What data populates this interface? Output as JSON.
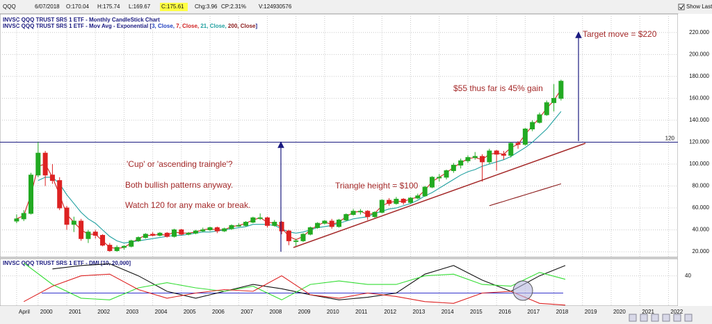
{
  "toolbar": {
    "items": [
      "QQQ",
      "6/07/2018",
      "O:170.04",
      "H:175.74",
      "L:169.67",
      "C:175.61",
      "Chg:3.96",
      "CP:2.31%",
      "V:124930576"
    ],
    "show_last": "Show Last"
  },
  "chart_data": {
    "type": "candlestick",
    "title": "INVSC QQQ TRUST SRS 1 ETF - Monthly CandleStick Chart",
    "ma_legend": [
      {
        "text": "INVSC QQQ TRUST SRS 1 ETF - Mov Avg - Exponential [",
        "color": "#1a1a80"
      },
      {
        "text": "3, Close, ",
        "color": "#2040c0"
      },
      {
        "text": "7, Close, ",
        "color": "#d02020"
      },
      {
        "text": "21, Close, ",
        "color": "#20a0a0"
      },
      {
        "text": "200, Close",
        "color": "#8b1a1a"
      },
      {
        "text": "]",
        "color": "#1a1a80"
      }
    ],
    "up_color": "#22aa22",
    "down_color": "#dd2222",
    "x": [
      1999.25,
      1999.5,
      1999.75,
      2000,
      2000.25,
      2000.5,
      2000.75,
      2001,
      2001.25,
      2001.5,
      2001.75,
      2002,
      2002.25,
      2002.5,
      2002.75,
      2003,
      2003.25,
      2003.5,
      2003.75,
      2004,
      2004.25,
      2004.5,
      2004.75,
      2005,
      2005.25,
      2005.5,
      2005.75,
      2006,
      2006.25,
      2006.5,
      2006.75,
      2007,
      2007.25,
      2007.5,
      2007.75,
      2008,
      2008.25,
      2008.5,
      2008.75,
      2009,
      2009.25,
      2009.5,
      2009.75,
      2010,
      2010.25,
      2010.5,
      2010.75,
      2011,
      2011.25,
      2011.5,
      2011.75,
      2012,
      2012.25,
      2012.5,
      2012.75,
      2013,
      2013.25,
      2013.5,
      2013.75,
      2014,
      2014.25,
      2014.5,
      2014.75,
      2015,
      2015.25,
      2015.5,
      2015.75,
      2016,
      2016.25,
      2016.5,
      2016.75,
      2017,
      2017.25,
      2017.5,
      2017.75,
      2018,
      2018.25
    ],
    "open": [
      48,
      50,
      55,
      90,
      110,
      90,
      85,
      60,
      45,
      48,
      32,
      38,
      35,
      26,
      21,
      24,
      25,
      30,
      33,
      36,
      35,
      37,
      34,
      40,
      36,
      37,
      39,
      40,
      42,
      39,
      41,
      44,
      44,
      47,
      51,
      51,
      44,
      47,
      39,
      30,
      30,
      36,
      42,
      46,
      48,
      43,
      49,
      54,
      57,
      57,
      52,
      56,
      67,
      64,
      68,
      65,
      69,
      71,
      79,
      88,
      88,
      94,
      99,
      103,
      106,
      107,
      102,
      112,
      109,
      108,
      119,
      118,
      132,
      138,
      145,
      156,
      160
    ],
    "high": [
      54,
      58,
      92,
      120,
      112,
      100,
      88,
      62,
      52,
      50,
      40,
      40,
      36,
      28,
      26,
      26,
      31,
      34,
      37,
      38,
      38,
      38,
      41,
      41,
      38,
      40,
      42,
      43,
      43,
      42,
      45,
      46,
      48,
      52,
      55,
      52,
      49,
      48,
      40,
      32,
      37,
      43,
      47,
      49,
      50,
      50,
      55,
      59,
      59,
      58,
      57,
      68,
      69,
      70,
      69,
      70,
      73,
      80,
      89,
      91,
      95,
      101,
      105,
      108,
      111,
      109,
      114,
      113,
      112,
      120,
      121,
      133,
      140,
      147,
      158,
      173,
      177
    ],
    "low": [
      46,
      48,
      54,
      88,
      80,
      82,
      58,
      40,
      38,
      30,
      28,
      32,
      25,
      20,
      20,
      22,
      24,
      29,
      32,
      34,
      34,
      33,
      33,
      35,
      35,
      36,
      38,
      39,
      37,
      38,
      40,
      43,
      43,
      46,
      49,
      42,
      43,
      36,
      26,
      25,
      29,
      35,
      41,
      45,
      41,
      42,
      48,
      53,
      54,
      49,
      51,
      55,
      62,
      63,
      63,
      64,
      68,
      70,
      78,
      84,
      86,
      92,
      96,
      101,
      104,
      84,
      100,
      94,
      104,
      106,
      114,
      117,
      130,
      137,
      144,
      148,
      158
    ],
    "close": [
      50,
      55,
      90,
      110,
      90,
      85,
      60,
      45,
      48,
      32,
      38,
      35,
      26,
      21,
      24,
      25,
      30,
      33,
      36,
      35,
      37,
      34,
      40,
      36,
      37,
      39,
      40,
      42,
      39,
      41,
      44,
      44,
      47,
      51,
      51,
      44,
      47,
      39,
      30,
      30,
      36,
      42,
      46,
      48,
      43,
      49,
      54,
      57,
      57,
      52,
      56,
      67,
      64,
      68,
      65,
      69,
      71,
      79,
      88,
      88,
      94,
      99,
      103,
      106,
      107,
      102,
      112,
      109,
      108,
      119,
      118,
      132,
      138,
      145,
      156,
      160,
      175.61
    ],
    "series": [
      {
        "color": "#d02020",
        "values": [
          50,
          53,
          72,
          98,
          100,
          88,
          72,
          54,
          47,
          40,
          36,
          36,
          30,
          24,
          23,
          24,
          28,
          32,
          35,
          35,
          36,
          35,
          38,
          37,
          37,
          38,
          40,
          41,
          40,
          40,
          43,
          44,
          46,
          49,
          51,
          47,
          46,
          42,
          34,
          31,
          34,
          40,
          44,
          47,
          45,
          47,
          52,
          56,
          57,
          54,
          55,
          62,
          65,
          66,
          66,
          68,
          70,
          76,
          84,
          88,
          92,
          97,
          101,
          105,
          106,
          104,
          109,
          110,
          109,
          115,
          118,
          127,
          135,
          142,
          151,
          158,
          168
        ]
      },
      {
        "color": "#20a0a0",
        "values": [
          null,
          null,
          null,
          85,
          88,
          88,
          82,
          72,
          64,
          56,
          50,
          46,
          40,
          34,
          30,
          28,
          29,
          30,
          31,
          32,
          33,
          34,
          35,
          35,
          36,
          37,
          38,
          38,
          39,
          40,
          41,
          42,
          43,
          45,
          45,
          45,
          44,
          41,
          38,
          37,
          38,
          40,
          42,
          43,
          44,
          46,
          48,
          50,
          51,
          52,
          55,
          57,
          59,
          60,
          62,
          64,
          67,
          71,
          74,
          78,
          82,
          86,
          90,
          93,
          95,
          98,
          100,
          102,
          104,
          107,
          111,
          115,
          120,
          126,
          132,
          140,
          148
        ]
      },
      {
        "color": "#8b1a1a",
        "x": [
          2015.75,
          2016,
          2016.25,
          2016.5,
          2016.75,
          2017,
          2017.25,
          2017.5,
          2017.75,
          2018,
          2018.25
        ],
        "values": [
          62,
          64,
          66,
          68,
          70,
          72,
          74,
          76,
          78,
          80,
          82
        ]
      }
    ],
    "hline": {
      "value": 120,
      "label": "120",
      "color": "#1a1a80"
    },
    "xlim": [
      1998.67,
      2022.33
    ],
    "ylim": [
      15,
      237
    ],
    "yticks": [
      {
        "value": 20,
        "label": "20.000"
      },
      {
        "value": 40,
        "label": "40.000"
      },
      {
        "value": 60,
        "label": "60.000"
      },
      {
        "value": 80,
        "label": "80.000"
      },
      {
        "value": 100,
        "label": "100.000"
      },
      {
        "value": 120,
        "label": "120.000"
      },
      {
        "value": 140,
        "label": "140.000"
      },
      {
        "value": 160,
        "label": "160.000"
      },
      {
        "value": 180,
        "label": "180.000"
      },
      {
        "value": 200,
        "label": "200.000"
      },
      {
        "value": 220,
        "label": "220.000"
      }
    ],
    "xticks": [
      {
        "value": 1999.25,
        "label": "April"
      },
      2000,
      2001,
      2002,
      2003,
      2004,
      2005,
      2006,
      2007,
      2008,
      2009,
      2010,
      2011,
      2012,
      2013,
      2014,
      2015,
      2016,
      2017,
      2018,
      2019,
      2020,
      2021,
      2022
    ],
    "grid": true,
    "annotations": [
      "Target move = $220",
      "$55 thus far is 45% gain",
      "'Cup' or 'ascending traingle'?",
      "Both bullish patterns anyway.",
      "Watch 120 for any make or break.",
      "Triangle height = $100"
    ]
  },
  "dmi": {
    "type": "line",
    "title": "INVSC QQQ TRUST SRS 1 ETF - DMI [10, 20,000]",
    "x": [
      1999.5,
      2000.5,
      2001.5,
      2002.5,
      2003.5,
      2004.5,
      2005.5,
      2006.5,
      2007.5,
      2008.5,
      2009.5,
      2010.5,
      2011.5,
      2012.5,
      2013.5,
      2014.5,
      2015.5,
      2016.5,
      2017.5,
      2018.4
    ],
    "series": [
      {
        "color": "#111111",
        "values": [
          null,
          48,
          52,
          54,
          40,
          22,
          14,
          22,
          30,
          25,
          18,
          12,
          15,
          20,
          42,
          52,
          35,
          22,
          40,
          52
        ]
      },
      {
        "color": "#33dd33",
        "values": [
          55,
          30,
          14,
          12,
          26,
          32,
          26,
          22,
          28,
          12,
          30,
          34,
          30,
          30,
          40,
          42,
          30,
          28,
          44,
          36
        ]
      },
      {
        "color": "#dd2222",
        "values": [
          10,
          28,
          40,
          42,
          24,
          14,
          20,
          24,
          22,
          40,
          18,
          14,
          20,
          16,
          10,
          8,
          20,
          22,
          8,
          6
        ]
      }
    ],
    "reference": 20,
    "ylim": [
      5,
      60
    ],
    "yticks": [
      40
    ]
  }
}
